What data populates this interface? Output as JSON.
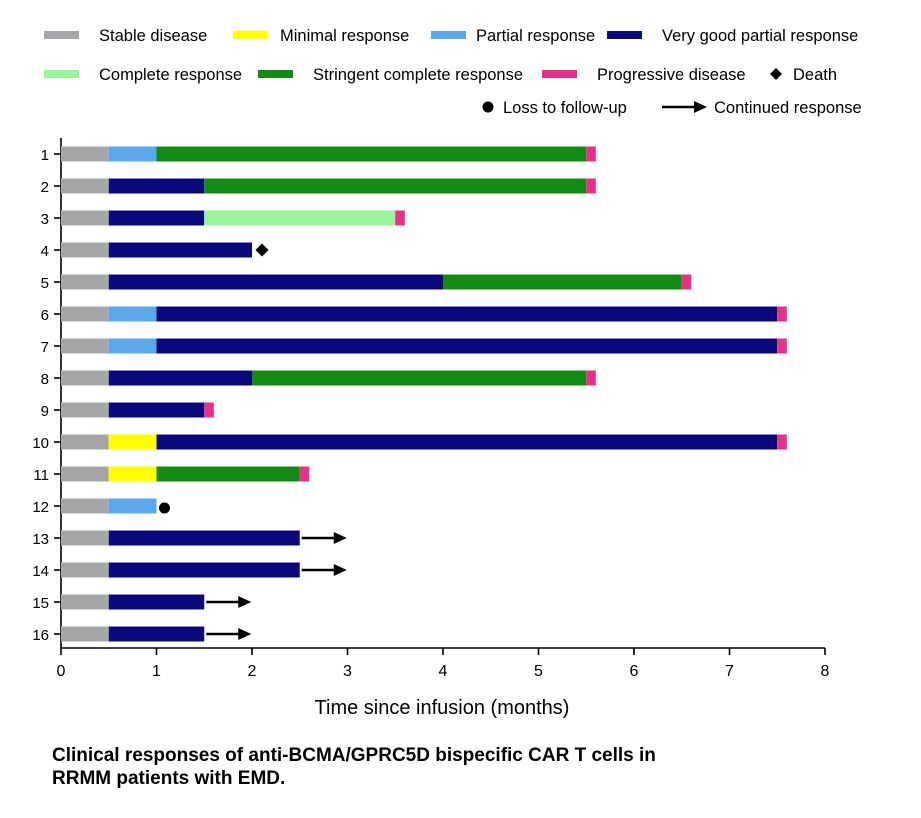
{
  "chart_data": {
    "type": "bar",
    "orientation": "horizontal-stacked-swimmer",
    "xlabel": "Time since infusion (months)",
    "ylabel": "",
    "xlim": [
      0,
      8
    ],
    "x_ticks": [
      "0",
      "1",
      "2",
      "3",
      "4",
      "5",
      "6",
      "7",
      "8"
    ],
    "categories": [
      "1",
      "2",
      "3",
      "4",
      "5",
      "6",
      "7",
      "8",
      "9",
      "10",
      "11",
      "12",
      "13",
      "14",
      "15",
      "16"
    ],
    "colors": {
      "Stable disease": "#a6a6a8",
      "Minimal response": "#ffff00",
      "Partial response": "#5aa7ea",
      "Very good partial response": "#0a0a7a",
      "Complete response": "#9af59a",
      "Stringent complete response": "#138a13",
      "Progressive disease": "#e8308a"
    },
    "legend": {
      "position": "top",
      "items": [
        {
          "label": "Stable disease",
          "kind": "bar"
        },
        {
          "label": "Minimal response",
          "kind": "bar"
        },
        {
          "label": "Partial response",
          "kind": "bar"
        },
        {
          "label": "Very good partial response",
          "kind": "bar"
        },
        {
          "label": "Complete response",
          "kind": "bar"
        },
        {
          "label": "Stringent complete response",
          "kind": "bar"
        },
        {
          "label": "Progressive disease",
          "kind": "bar"
        },
        {
          "label": "Death",
          "kind": "diamond"
        },
        {
          "label": "Loss to follow-up",
          "kind": "circle"
        },
        {
          "label": "Continued response",
          "kind": "arrow"
        }
      ]
    },
    "patients": [
      {
        "id": "1",
        "segments": [
          [
            "Stable disease",
            0,
            0.5
          ],
          [
            "Partial response",
            0.5,
            1.0
          ],
          [
            "Stringent complete response",
            1.0,
            5.5
          ],
          [
            "Progressive disease",
            5.5,
            5.6
          ]
        ],
        "marker": null
      },
      {
        "id": "2",
        "segments": [
          [
            "Stable disease",
            0,
            0.5
          ],
          [
            "Very good partial response",
            0.5,
            1.5
          ],
          [
            "Stringent complete response",
            1.5,
            5.5
          ],
          [
            "Progressive disease",
            5.5,
            5.6
          ]
        ],
        "marker": null
      },
      {
        "id": "3",
        "segments": [
          [
            "Stable disease",
            0,
            0.5
          ],
          [
            "Very good partial response",
            0.5,
            1.5
          ],
          [
            "Complete response",
            1.5,
            3.5
          ],
          [
            "Progressive disease",
            3.5,
            3.6
          ]
        ],
        "marker": null
      },
      {
        "id": "4",
        "segments": [
          [
            "Stable disease",
            0,
            0.5
          ],
          [
            "Very good partial response",
            0.5,
            2.0
          ]
        ],
        "marker": "Death"
      },
      {
        "id": "5",
        "segments": [
          [
            "Stable disease",
            0,
            0.5
          ],
          [
            "Very good partial response",
            0.5,
            4.0
          ],
          [
            "Stringent complete response",
            4.0,
            6.5
          ],
          [
            "Progressive disease",
            6.5,
            6.6
          ]
        ],
        "marker": null
      },
      {
        "id": "6",
        "segments": [
          [
            "Stable disease",
            0,
            0.5
          ],
          [
            "Partial response",
            0.5,
            1.0
          ],
          [
            "Very good partial response",
            1.0,
            7.5
          ],
          [
            "Progressive disease",
            7.5,
            7.6
          ]
        ],
        "marker": null
      },
      {
        "id": "7",
        "segments": [
          [
            "Stable disease",
            0,
            0.5
          ],
          [
            "Partial response",
            0.5,
            1.0
          ],
          [
            "Very good partial response",
            1.0,
            7.5
          ],
          [
            "Progressive disease",
            7.5,
            7.6
          ]
        ],
        "marker": null
      },
      {
        "id": "8",
        "segments": [
          [
            "Stable disease",
            0,
            0.5
          ],
          [
            "Very good partial response",
            0.5,
            2.0
          ],
          [
            "Stringent complete response",
            2.0,
            5.5
          ],
          [
            "Progressive disease",
            5.5,
            5.6
          ]
        ],
        "marker": null
      },
      {
        "id": "9",
        "segments": [
          [
            "Stable disease",
            0,
            0.5
          ],
          [
            "Very good partial response",
            0.5,
            1.5
          ],
          [
            "Progressive disease",
            1.5,
            1.6
          ]
        ],
        "marker": null
      },
      {
        "id": "10",
        "segments": [
          [
            "Stable disease",
            0,
            0.5
          ],
          [
            "Minimal response",
            0.5,
            1.0
          ],
          [
            "Very good partial response",
            1.0,
            7.5
          ],
          [
            "Progressive disease",
            7.5,
            7.6
          ]
        ],
        "marker": null
      },
      {
        "id": "11",
        "segments": [
          [
            "Stable disease",
            0,
            0.5
          ],
          [
            "Minimal response",
            0.5,
            1.0
          ],
          [
            "Stringent complete response",
            1.0,
            2.5
          ],
          [
            "Progressive disease",
            2.5,
            2.6
          ]
        ],
        "marker": null
      },
      {
        "id": "12",
        "segments": [
          [
            "Stable disease",
            0,
            0.5
          ],
          [
            "Partial response",
            0.5,
            1.0
          ]
        ],
        "marker": "Loss to follow-up"
      },
      {
        "id": "13",
        "segments": [
          [
            "Stable disease",
            0,
            0.5
          ],
          [
            "Very good partial response",
            0.5,
            2.5
          ]
        ],
        "marker": "Continued response"
      },
      {
        "id": "14",
        "segments": [
          [
            "Stable disease",
            0,
            0.5
          ],
          [
            "Very good partial response",
            0.5,
            2.5
          ]
        ],
        "marker": "Continued response"
      },
      {
        "id": "15",
        "segments": [
          [
            "Stable disease",
            0,
            0.5
          ],
          [
            "Very good partial response",
            0.5,
            1.5
          ]
        ],
        "marker": "Continued response"
      },
      {
        "id": "16",
        "segments": [
          [
            "Stable disease",
            0,
            0.5
          ],
          [
            "Very good partial response",
            0.5,
            1.5
          ]
        ],
        "marker": "Continued response"
      }
    ]
  },
  "caption": {
    "line1": "Clinical responses of anti-BCMA/GPRC5D bispecific CAR T cells in",
    "line2": "RRMM patients with EMD."
  }
}
